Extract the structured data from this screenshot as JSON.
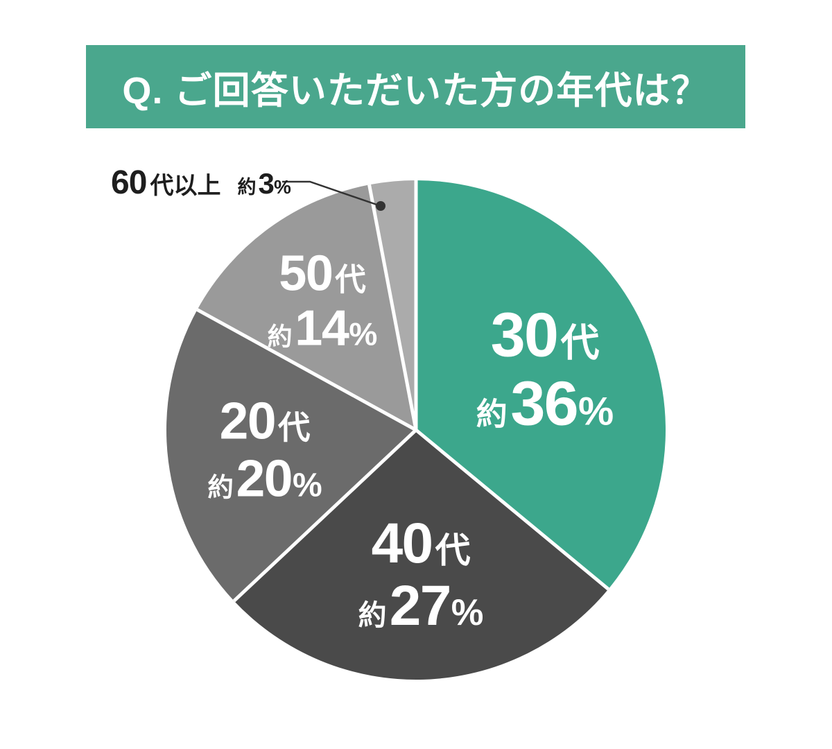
{
  "page": {
    "bg_color": "#FFFFFF"
  },
  "header": {
    "title": "Q. ご回答いただいた方の年代は？",
    "bg_color": "#4AA78D",
    "text_color": "#FFFFFF"
  },
  "chart_data": {
    "type": "pie",
    "title": "Q. ご回答いただいた方の年代は？",
    "direction": "clockwise",
    "start_angle_deg": 0,
    "grid": false,
    "legend": "none",
    "divider_color": "#FFFFFF",
    "approx_prefix": "約",
    "unit": "%",
    "categories": [
      "30代",
      "40代",
      "20代",
      "50代",
      "60代以上"
    ],
    "values": [
      36,
      27,
      20,
      14,
      3
    ],
    "slices": [
      {
        "key": "30s",
        "name": "30代",
        "num": "30",
        "kanji": "代",
        "approx": "約",
        "pct": "36",
        "unit": "%",
        "value": 36,
        "color": "#3CA78C",
        "text_color": "#FFFFFF",
        "label_placement": "inside"
      },
      {
        "key": "40s",
        "name": "40代",
        "num": "40",
        "kanji": "代",
        "approx": "約",
        "pct": "27",
        "unit": "%",
        "value": 27,
        "color": "#4A4A4A",
        "text_color": "#FFFFFF",
        "label_placement": "inside"
      },
      {
        "key": "20s",
        "name": "20代",
        "num": "20",
        "kanji": "代",
        "approx": "約",
        "pct": "20",
        "unit": "%",
        "value": 20,
        "color": "#6B6B6B",
        "text_color": "#FFFFFF",
        "label_placement": "inside"
      },
      {
        "key": "50s",
        "name": "50代",
        "num": "50",
        "kanji": "代",
        "approx": "約",
        "pct": "14",
        "unit": "%",
        "value": 14,
        "color": "#9A9A9A",
        "text_color": "#FFFFFF",
        "label_placement": "inside"
      },
      {
        "key": "60s-plus",
        "name": "60代以上",
        "num": "60",
        "kanji": "代以上",
        "approx": "約",
        "pct": "3",
        "unit": "%",
        "value": 3,
        "color": "#ABABAB",
        "text_color": "#1E1E1E",
        "label_placement": "callout"
      }
    ],
    "callout": {
      "line_color": "#333333",
      "dot_color": "#333333"
    }
  }
}
